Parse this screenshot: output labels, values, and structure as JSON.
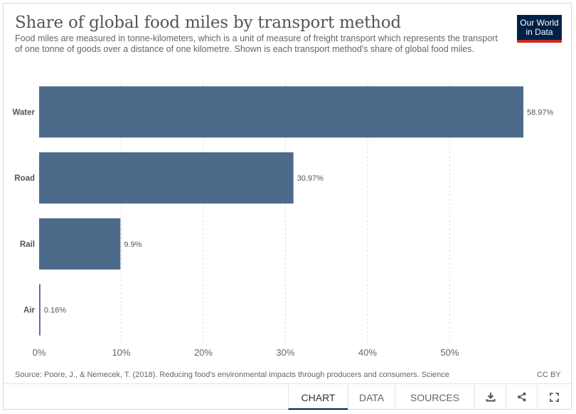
{
  "header": {
    "title": "Share of global food miles by transport method",
    "subtitle": "Food miles are measured in tonne-kilometers, which is a unit of measure of freight transport which represents the transport of one tonne of goods over a distance of one kilometre. Shown is each transport method's share of global food miles.",
    "logo_line1": "Our World",
    "logo_line2": "in Data"
  },
  "footer": {
    "source": "Source: Poore, J., & Nemecek, T. (2018). Reducing food's environmental impacts through producers and consumers. Science",
    "license": "CC BY"
  },
  "toolbar": {
    "tabs": [
      "Chart",
      "Data",
      "Sources"
    ],
    "icons": [
      "download-icon",
      "share-icon",
      "fullscreen-icon"
    ]
  },
  "colors": {
    "bar": "#4c6a8a",
    "brand": "#002147",
    "accent": "#ce261e"
  },
  "chart_data": {
    "type": "bar",
    "orientation": "horizontal",
    "categories": [
      "Water",
      "Road",
      "Rail",
      "Air"
    ],
    "values": [
      58.97,
      30.97,
      9.9,
      0.16
    ],
    "value_labels": [
      "58.97%",
      "30.97%",
      "9.9%",
      "0.16%"
    ],
    "xticks": [
      0,
      10,
      20,
      30,
      40,
      50
    ],
    "xtick_labels": [
      "0%",
      "10%",
      "20%",
      "30%",
      "40%",
      "50%"
    ],
    "xlim": [
      0,
      58.97
    ],
    "grid": true
  }
}
